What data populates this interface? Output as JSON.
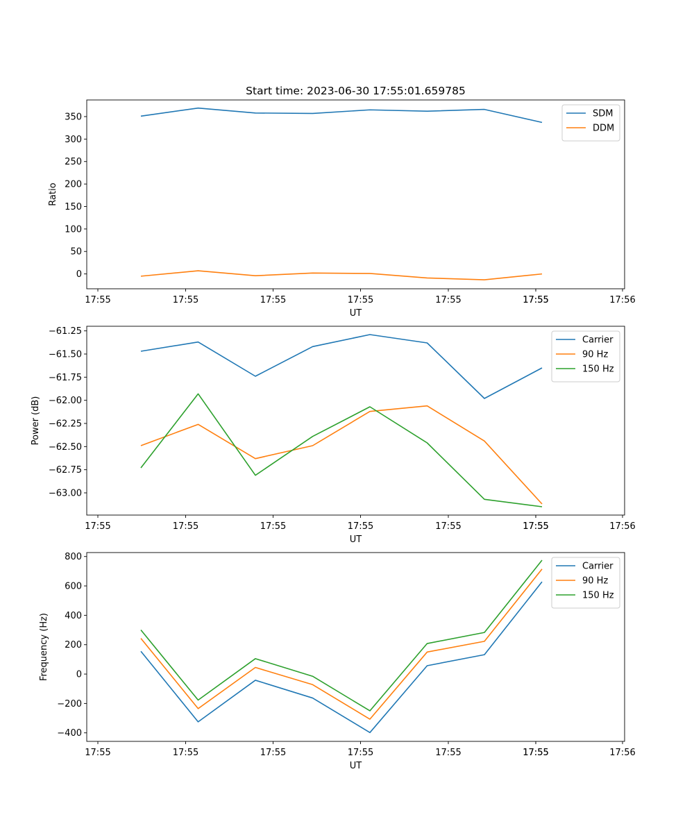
{
  "title": "Start time: 2023-06-30 17:55:01.659785",
  "colors": {
    "c0": "#1f77b4",
    "c1": "#ff7f0e",
    "c2": "#2ca02c"
  },
  "chart_data": [
    {
      "type": "line",
      "xlabel": "UT",
      "ylabel": "Ratio",
      "x_tick_labels": [
        "17:55",
        "17:55",
        "17:55",
        "17:55",
        "17:55",
        "17:55",
        "17:55",
        "17:56"
      ],
      "y_ticks": [
        0,
        50,
        100,
        150,
        200,
        250,
        300,
        350
      ],
      "y_tick_labels": [
        "0",
        "50",
        "100",
        "150",
        "200",
        "250",
        "300",
        "350"
      ],
      "ylim": [
        -33,
        387
      ],
      "legend_position": "top-right",
      "series": [
        {
          "name": "SDM",
          "color": "#1f77b4",
          "values": [
            351,
            369,
            358,
            357,
            365,
            362,
            366,
            337
          ]
        },
        {
          "name": "DDM",
          "color": "#ff7f0e",
          "values": [
            -5,
            7,
            -4,
            2,
            1,
            -9,
            -13,
            0
          ]
        }
      ]
    },
    {
      "type": "line",
      "xlabel": "UT",
      "ylabel": "Power (dB)",
      "x_tick_labels": [
        "17:55",
        "17:55",
        "17:55",
        "17:55",
        "17:55",
        "17:55",
        "17:55",
        "17:56"
      ],
      "y_ticks": [
        -63.0,
        -62.75,
        -62.5,
        -62.25,
        -62.0,
        -61.75,
        -61.5,
        -61.25
      ],
      "y_tick_labels": [
        "−63.00",
        "−62.75",
        "−62.50",
        "−62.25",
        "−62.00",
        "−61.75",
        "−61.50",
        "−61.25"
      ],
      "ylim": [
        -63.24,
        -61.2
      ],
      "legend_position": "top-right",
      "series": [
        {
          "name": "Carrier",
          "color": "#1f77b4",
          "values": [
            -61.47,
            -61.37,
            -61.74,
            -61.42,
            -61.29,
            -61.38,
            -61.98,
            -61.65
          ]
        },
        {
          "name": "90 Hz",
          "color": "#ff7f0e",
          "values": [
            -62.49,
            -62.26,
            -62.63,
            -62.49,
            -62.12,
            -62.06,
            -62.44,
            -63.12
          ]
        },
        {
          "name": "150 Hz",
          "color": "#2ca02c",
          "values": [
            -62.73,
            -61.93,
            -62.81,
            -62.39,
            -62.07,
            -62.46,
            -63.07,
            -63.15
          ]
        }
      ]
    },
    {
      "type": "line",
      "xlabel": "UT",
      "ylabel": "Frequency (Hz)",
      "x_tick_labels": [
        "17:55",
        "17:55",
        "17:55",
        "17:55",
        "17:55",
        "17:55",
        "17:55",
        "17:56"
      ],
      "y_ticks": [
        -400,
        -200,
        0,
        200,
        400,
        600,
        800
      ],
      "y_tick_labels": [
        "−400",
        "−200",
        "0",
        "200",
        "400",
        "600",
        "800"
      ],
      "ylim": [
        -458,
        827
      ],
      "legend_position": "top-right",
      "series": [
        {
          "name": "Carrier",
          "color": "#1f77b4",
          "values": [
            155,
            -325,
            -42,
            -163,
            -398,
            57,
            132,
            628
          ]
        },
        {
          "name": "90 Hz",
          "color": "#ff7f0e",
          "values": [
            243,
            -235,
            45,
            -72,
            -307,
            150,
            223,
            715
          ]
        },
        {
          "name": "150 Hz",
          "color": "#2ca02c",
          "values": [
            300,
            -177,
            105,
            -15,
            -250,
            208,
            283,
            775
          ]
        }
      ]
    }
  ]
}
